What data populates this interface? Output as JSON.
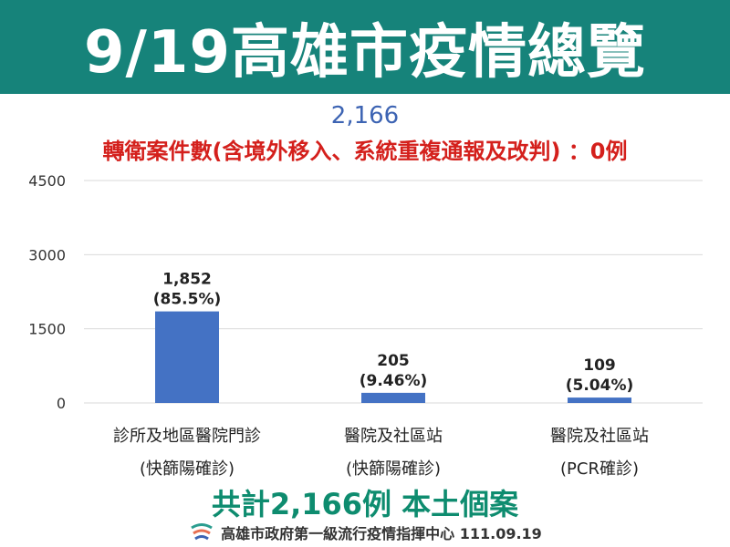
{
  "header": {
    "title": "9/19高雄市疫情總覽"
  },
  "total_number": "2,166",
  "transfer_note": "轉衛案件數(含境外移入、系統重複通報及改判) ：0例",
  "summary": "共計2,166例 本土個案",
  "footer": {
    "text": "高雄市政府第一級流行疫情指揮中心 111.09.19"
  },
  "colors": {
    "header_bg": "#16837a",
    "bar": "#4472c4",
    "summary": "#0e8c6f",
    "note": "#d4201c",
    "total": "#3d64b3"
  },
  "chart_data": {
    "type": "bar",
    "title": "",
    "xlabel": "",
    "ylabel": "",
    "ylim": [
      0,
      4500
    ],
    "yticks": [
      0,
      1500,
      3000,
      4500
    ],
    "y_tick_labels": [
      "0",
      "1500",
      "3000",
      "4500"
    ],
    "grid": true,
    "categories": [
      {
        "line1": "診所及地區醫院門診",
        "line2": "(快篩陽確診)"
      },
      {
        "line1": "醫院及社區站",
        "line2": "(快篩陽確診)"
      },
      {
        "line1": "醫院及社區站",
        "line2": "(PCR確診)"
      }
    ],
    "values": [
      1852,
      205,
      109
    ],
    "data_labels": [
      {
        "count": "1,852",
        "percent": "(85.5%)"
      },
      {
        "count": "205",
        "percent": "(9.46%)"
      },
      {
        "count": "109",
        "percent": "(5.04%)"
      }
    ]
  }
}
